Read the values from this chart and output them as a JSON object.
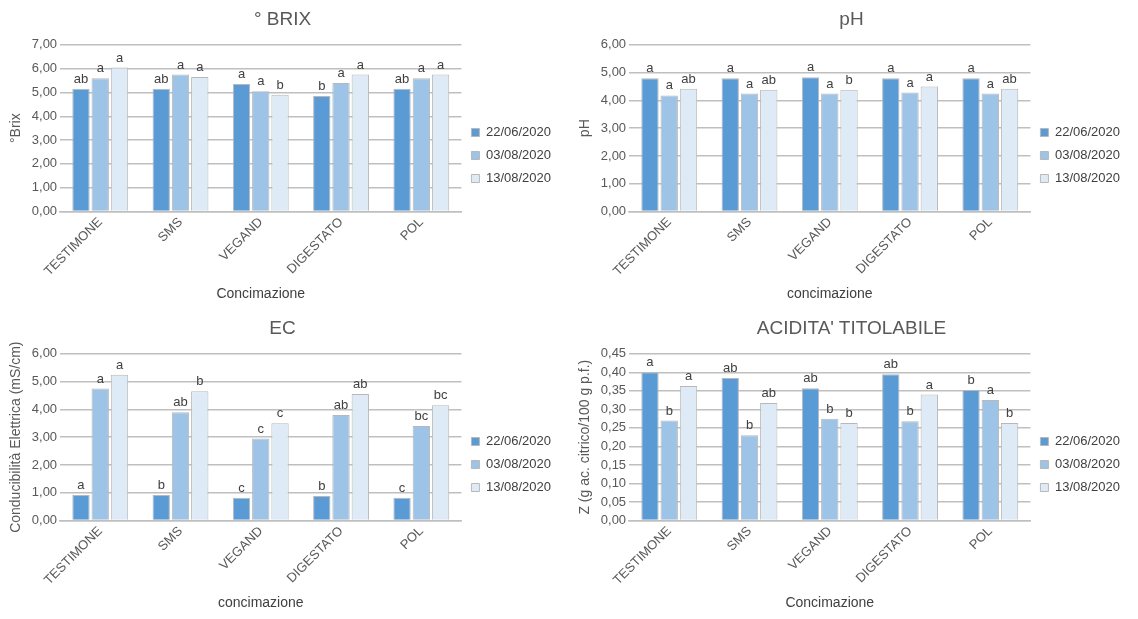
{
  "chart_data": [
    {
      "type": "bar",
      "title": "° BRIX",
      "xlabel": "Concimazione",
      "ylabel": "°Brix",
      "categories": [
        "TESTIMONE",
        "SMS",
        "VEGAND",
        "DIGESTATO",
        "POL"
      ],
      "series": [
        {
          "name": "22/06/2020",
          "color": "#5b9bd5",
          "values": [
            5.15,
            5.15,
            5.35,
            4.85,
            5.15
          ],
          "value_labels": [
            "ab",
            "ab",
            "a",
            "b",
            "ab"
          ]
        },
        {
          "name": "03/08/2020",
          "color": "#9dc3e6",
          "values": [
            5.6,
            5.75,
            5.05,
            5.4,
            5.6
          ],
          "value_labels": [
            "a",
            "a",
            "a",
            "a",
            "a"
          ]
        },
        {
          "name": "13/08/2020",
          "color": "#deebf7",
          "values": [
            6.05,
            5.65,
            4.9,
            5.75,
            5.75
          ],
          "value_labels": [
            "a",
            "a",
            "b",
            "a",
            "a"
          ]
        }
      ],
      "ylim": [
        0,
        7
      ],
      "yticks": [
        {
          "value": 0,
          "label": "0,00"
        },
        {
          "value": 1,
          "label": "1,00"
        },
        {
          "value": 2,
          "label": "2,00"
        },
        {
          "value": 3,
          "label": "3,00"
        },
        {
          "value": 4,
          "label": "4,00"
        },
        {
          "value": 5,
          "label": "5,00"
        },
        {
          "value": 6,
          "label": "6,00"
        },
        {
          "value": 7,
          "label": "7,00"
        }
      ],
      "grid": "y",
      "legend": "right"
    },
    {
      "type": "bar",
      "title": "pH",
      "xlabel": "concimazione",
      "ylabel": "pH",
      "categories": [
        "TESTIMONE",
        "SMS",
        "VEGAND",
        "DIGESTATO",
        "POL"
      ],
      "series": [
        {
          "name": "22/06/2020",
          "color": "#5b9bd5",
          "values": [
            4.8,
            4.8,
            4.83,
            4.8,
            4.8
          ],
          "value_labels": [
            "a",
            "a",
            "a",
            "a",
            "a"
          ]
        },
        {
          "name": "03/08/2020",
          "color": "#9dc3e6",
          "values": [
            4.18,
            4.25,
            4.25,
            4.28,
            4.25
          ],
          "value_labels": [
            "a",
            "a",
            "a",
            "a",
            "a"
          ]
        },
        {
          "name": "13/08/2020",
          "color": "#deebf7",
          "values": [
            4.42,
            4.38,
            4.38,
            4.5,
            4.42
          ],
          "value_labels": [
            "ab",
            "ab",
            "b",
            "a",
            "ab"
          ]
        }
      ],
      "ylim": [
        0,
        6
      ],
      "yticks": [
        {
          "value": 0,
          "label": "0,00"
        },
        {
          "value": 1,
          "label": "1,00"
        },
        {
          "value": 2,
          "label": "2,00"
        },
        {
          "value": 3,
          "label": "3,00"
        },
        {
          "value": 4,
          "label": "4,00"
        },
        {
          "value": 5,
          "label": "5,00"
        },
        {
          "value": 6,
          "label": "6,00"
        }
      ],
      "grid": "y",
      "legend": "right"
    },
    {
      "type": "bar",
      "title": "EC",
      "xlabel": "concimazione",
      "ylabel": "Conducibilità Elettrica (mS/cm)",
      "categories": [
        "TESTIMONE",
        "SMS",
        "VEGAND",
        "DIGESTATO",
        "POL"
      ],
      "series": [
        {
          "name": "22/06/2020",
          "color": "#5b9bd5",
          "values": [
            0.92,
            0.92,
            0.82,
            0.88,
            0.82
          ],
          "value_labels": [
            "a",
            "b",
            "c",
            "b",
            "c"
          ]
        },
        {
          "name": "03/08/2020",
          "color": "#9dc3e6",
          "values": [
            4.75,
            3.9,
            2.95,
            3.8,
            3.4
          ],
          "value_labels": [
            "a",
            "ab",
            "c",
            "ab",
            "bc"
          ]
        },
        {
          "name": "13/08/2020",
          "color": "#deebf7",
          "values": [
            5.25,
            4.65,
            3.5,
            4.55,
            4.15
          ],
          "value_labels": [
            "a",
            "b",
            "c",
            "ab",
            "bc"
          ]
        }
      ],
      "ylim": [
        0,
        6
      ],
      "yticks": [
        {
          "value": 0,
          "label": "0,00"
        },
        {
          "value": 1,
          "label": "1,00"
        },
        {
          "value": 2,
          "label": "2,00"
        },
        {
          "value": 3,
          "label": "3,00"
        },
        {
          "value": 4,
          "label": "4,00"
        },
        {
          "value": 5,
          "label": "5,00"
        },
        {
          "value": 6,
          "label": "6,00"
        }
      ],
      "grid": "y",
      "legend": "right"
    },
    {
      "type": "bar",
      "title": "ACIDITA' TITOLABILE",
      "xlabel": "Concimazione",
      "ylabel": "Z (g ac. citrico/100 g p.f.)",
      "categories": [
        "TESTIMONE",
        "SMS",
        "VEGAND",
        "DIGESTATO",
        "POL"
      ],
      "series": [
        {
          "name": "22/06/2020",
          "color": "#5b9bd5",
          "values": [
            0.4,
            0.385,
            0.357,
            0.395,
            0.352
          ],
          "value_labels": [
            "a",
            "ab",
            "ab",
            "ab",
            "b"
          ]
        },
        {
          "name": "03/08/2020",
          "color": "#9dc3e6",
          "values": [
            0.27,
            0.23,
            0.275,
            0.268,
            0.325
          ],
          "value_labels": [
            "b",
            "b",
            "b",
            "b",
            "a"
          ]
        },
        {
          "name": "13/08/2020",
          "color": "#deebf7",
          "values": [
            0.363,
            0.317,
            0.263,
            0.34,
            0.263
          ],
          "value_labels": [
            "a",
            "ab",
            "b",
            "a",
            "b"
          ]
        }
      ],
      "ylim": [
        0,
        0.45
      ],
      "yticks": [
        {
          "value": 0,
          "label": "0,00"
        },
        {
          "value": 0.05,
          "label": "0,05"
        },
        {
          "value": 0.1,
          "label": "0,10"
        },
        {
          "value": 0.15,
          "label": "0,15"
        },
        {
          "value": 0.2,
          "label": "0,20"
        },
        {
          "value": 0.25,
          "label": "0,25"
        },
        {
          "value": 0.3,
          "label": "0,30"
        },
        {
          "value": 0.35,
          "label": "0,35"
        },
        {
          "value": 0.4,
          "label": "0,40"
        },
        {
          "value": 0.45,
          "label": "0,45"
        }
      ],
      "grid": "y",
      "legend": "right"
    }
  ]
}
